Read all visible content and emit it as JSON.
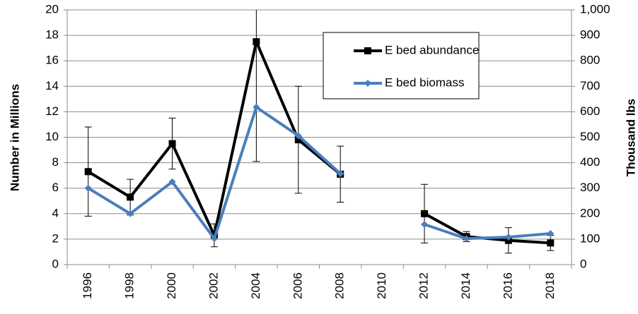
{
  "chart_data": {
    "type": "line",
    "categories": [
      "1996",
      "1998",
      "2000",
      "2002",
      "2004",
      "2006",
      "2008",
      "2010",
      "2012",
      "2014",
      "2016",
      "2018"
    ],
    "y_label": "Number in Millions",
    "y2_label": "Thousand lbs",
    "ylim": [
      0,
      20
    ],
    "yticks": [
      0,
      2,
      4,
      6,
      8,
      10,
      12,
      14,
      16,
      18,
      20
    ],
    "y2lim": [
      0,
      1000
    ],
    "y2ticks": [
      0,
      100,
      200,
      300,
      400,
      500,
      600,
      700,
      800,
      900,
      {
        "value": 1000,
        "label": "1,000"
      }
    ],
    "grid": true,
    "legend": "top-right",
    "series": [
      {
        "name": "E bed abundance",
        "color": "#000000",
        "marker": "square",
        "values": [
          7.3,
          5.3,
          9.5,
          2.3,
          17.5,
          9.8,
          7.1,
          null,
          4.0,
          2.2,
          1.9,
          1.7
        ],
        "errors": [
          3.5,
          1.4,
          2.0,
          0.9,
          9.4,
          4.2,
          2.2,
          null,
          2.3,
          0.4,
          1.0,
          0.6
        ]
      },
      {
        "name": "E bed biomass",
        "color": "#4a7ebb",
        "marker": "diamond",
        "axis": "y2",
        "values": [
          300,
          200,
          325,
          102,
          618,
          506,
          357,
          null,
          158,
          102,
          108,
          122
        ]
      }
    ]
  }
}
